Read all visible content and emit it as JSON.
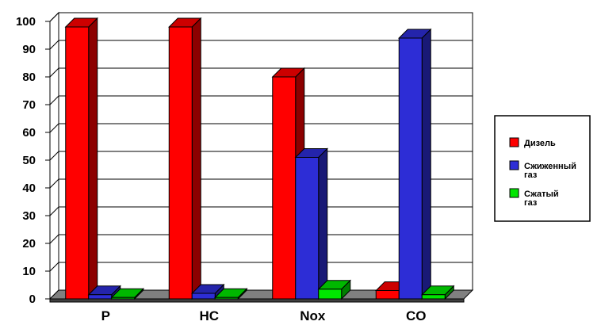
{
  "chart_data": {
    "type": "bar",
    "style": "3d-clustered-column",
    "categories": [
      "P",
      "HC",
      "Nox",
      "CO"
    ],
    "series": [
      {
        "name": "Дизель",
        "name_lines": [
          "Дизель"
        ],
        "values": [
          98,
          98,
          80,
          3
        ],
        "color": "#ff0000"
      },
      {
        "name": "Сжиженный газ",
        "name_lines": [
          "Сжиженный",
          "газ"
        ],
        "values": [
          1.5,
          2,
          51,
          94
        ],
        "color": "#2d2dd6"
      },
      {
        "name": "Сжатый газ",
        "name_lines": [
          "Сжатый",
          "газ"
        ],
        "values": [
          0.5,
          0.5,
          3.5,
          1.5
        ],
        "color": "#00e600"
      }
    ],
    "ylim": [
      0,
      100
    ],
    "yticks": [
      0,
      10,
      20,
      30,
      40,
      50,
      60,
      70,
      80,
      90,
      100
    ],
    "grid": true,
    "legend_position": "right",
    "title": "",
    "xlabel": "",
    "ylabel": ""
  }
}
